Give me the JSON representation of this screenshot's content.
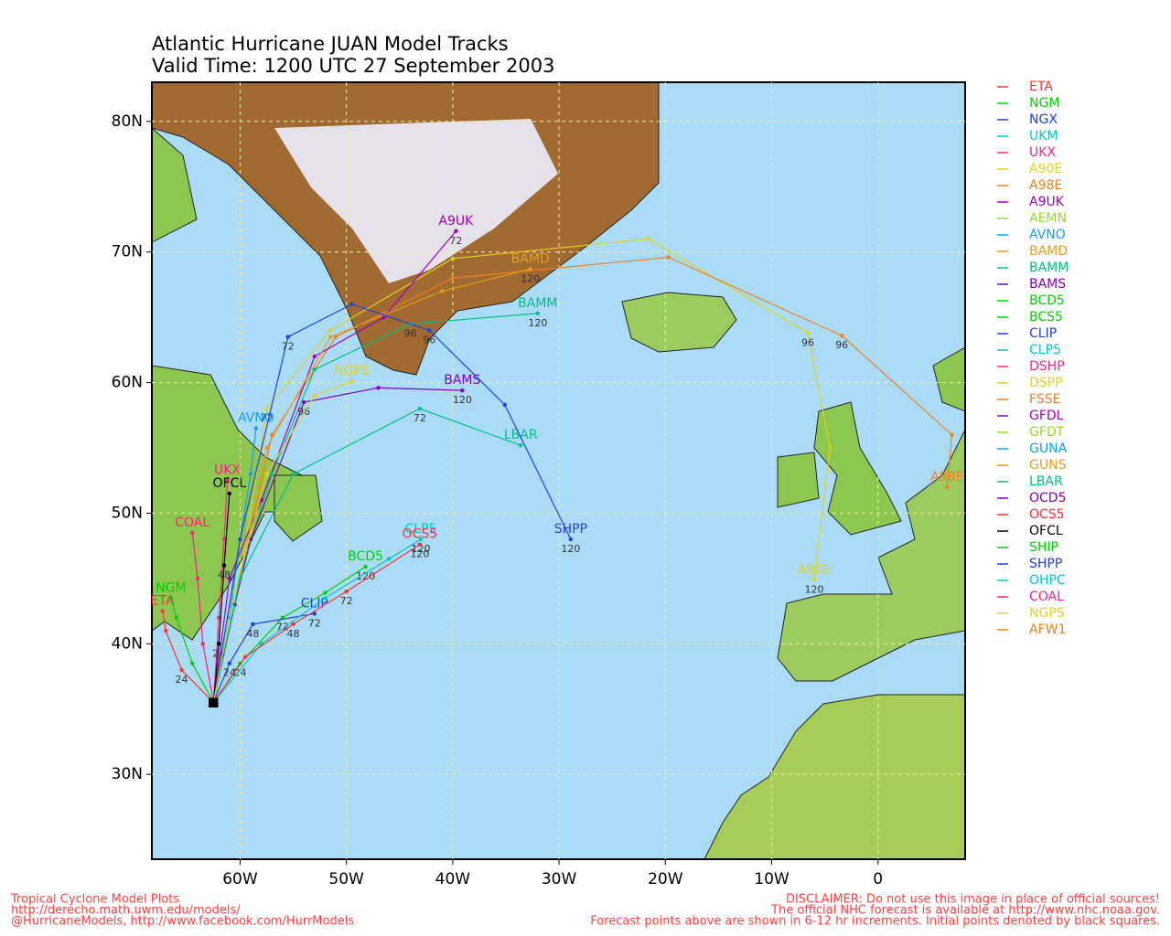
{
  "chart_data": {
    "type": "track-map",
    "title": "Atlantic Hurricane JUAN Model Tracks",
    "subtitle": "Valid Time: 1200 UTC 27 September 2003",
    "xlim": [
      -68.3,
      8.2
    ],
    "ylim": [
      23.5,
      83
    ],
    "grid": true,
    "xticks": [
      {
        "value": -60,
        "label": "60W"
      },
      {
        "value": -50,
        "label": "50W"
      },
      {
        "value": -40,
        "label": "40W"
      },
      {
        "value": -30,
        "label": "30W"
      },
      {
        "value": -20,
        "label": "20W"
      },
      {
        "value": -10,
        "label": "10W"
      },
      0
    ],
    "yticks": [
      {
        "value": 30,
        "label": "30N"
      },
      {
        "value": 40,
        "label": "40N"
      },
      {
        "value": 50,
        "label": "50N"
      },
      {
        "value": 60,
        "label": "60N"
      },
      {
        "value": 70,
        "label": "70N"
      },
      {
        "value": 80,
        "label": "80N"
      }
    ],
    "series": [
      {
        "name": "ETA",
        "color": "#ff3030",
        "lon": [
          -62.5,
          -65.5,
          -67,
          -67.3
        ],
        "lat": [
          35.5,
          38,
          41,
          42.5
        ],
        "hours": [
          null,
          24,
          null,
          null
        ]
      },
      {
        "name": "NGM",
        "color": "#00d000",
        "lon": [
          -62.5,
          -64.5,
          -66,
          -66.5
        ],
        "lat": [
          35.5,
          38.5,
          42,
          43.5
        ]
      },
      {
        "name": "NGX",
        "color": "#2040e0"
      },
      {
        "name": "UKM",
        "color": "#00c8c8"
      },
      {
        "name": "UKX",
        "color": "#ff2080",
        "lon": [
          -62.5,
          -62,
          -61.5,
          -61.2
        ],
        "lat": [
          35.5,
          42,
          48,
          52.5
        ]
      },
      {
        "name": "A90E",
        "color": "#e0d020",
        "lon": [
          -62.5,
          -60,
          -57.5,
          -51.5,
          -40,
          -21.6,
          -6.6,
          -4.5,
          -6
        ],
        "lat": [
          35.5,
          45,
          58,
          64,
          69.5,
          71,
          63.8,
          55,
          44.9
        ],
        "hours": [
          null,
          null,
          72,
          null,
          null,
          null,
          96,
          null,
          120
        ]
      },
      {
        "name": "A98E",
        "color": "#f08020",
        "lon": [
          -62.5,
          -60,
          -57,
          -51,
          -40,
          -19.7,
          -3.4,
          6.95,
          6.5
        ],
        "lat": [
          35.5,
          45,
          56,
          63.5,
          68,
          69.6,
          63.6,
          56,
          52
        ],
        "hours": [
          null,
          null,
          null,
          null,
          null,
          null,
          96,
          null,
          null
        ]
      },
      {
        "name": "A9UK",
        "color": "#a000c0",
        "lon": [
          -62.5,
          -61,
          -58,
          -53,
          -46.5,
          -39.7
        ],
        "lat": [
          35.5,
          45,
          51,
          62,
          65,
          71.6
        ],
        "hours": [
          null,
          null,
          null,
          null,
          null,
          72
        ]
      },
      {
        "name": "AEMN",
        "color": "#90e020"
      },
      {
        "name": "AVNO",
        "color": "#10a0f0",
        "lon": [
          -62.5,
          -61,
          -60,
          -59,
          -58.5
        ],
        "lat": [
          35.5,
          42,
          48,
          53,
          56.5
        ]
      },
      {
        "name": "BAMD",
        "color": "#e0a020",
        "lon": [
          -62.5,
          -60,
          -57.5,
          -51.5,
          -41,
          -32.7
        ],
        "lat": [
          35.5,
          45,
          55,
          63.5,
          67,
          68.7
        ],
        "hours": [
          null,
          null,
          null,
          null,
          null,
          120
        ]
      },
      {
        "name": "BAMM",
        "color": "#00c080",
        "lon": [
          -62.5,
          -60.5,
          -57,
          -53,
          -44,
          -32
        ],
        "lat": [
          35.5,
          44,
          53,
          61,
          64.5,
          65.3
        ],
        "hours": [
          null,
          null,
          null,
          null,
          96,
          120
        ]
      },
      {
        "name": "BAMS",
        "color": "#8000c0",
        "lon": [
          -62.5,
          -60.5,
          -59,
          -54,
          -47,
          -39.1
        ],
        "lat": [
          35.5,
          43,
          48,
          58.5,
          59.6,
          59.4
        ],
        "hours": [
          null,
          null,
          null,
          96,
          null,
          120
        ]
      },
      {
        "name": "BCD5",
        "color": "#00d000",
        "lon": [
          -62.5,
          -60,
          -56,
          -52,
          -48.2
        ],
        "lat": [
          35.5,
          38.5,
          42,
          43.9,
          45.9
        ],
        "hours": [
          null,
          24,
          72,
          null,
          120
        ]
      },
      {
        "name": "BCS5",
        "color": "#00d000"
      },
      {
        "name": "CLIP",
        "color": "#2040e0",
        "lon": [
          -62.5,
          -61,
          -58.8,
          -53
        ],
        "lat": [
          35.5,
          38.5,
          41.5,
          42.3
        ],
        "hours": [
          null,
          24,
          48,
          72
        ]
      },
      {
        "name": "CLP5",
        "color": "#00c8c8",
        "lon": [
          -62.5,
          -58,
          -52,
          -46,
          -43
        ],
        "lat": [
          35.5,
          40,
          43.5,
          46.5,
          48
        ],
        "hours": [
          null,
          null,
          null,
          null,
          120
        ]
      },
      {
        "name": "DSHP",
        "color": "#ff2080"
      },
      {
        "name": "DSPP",
        "color": "#e0d020"
      },
      {
        "name": "FSSE",
        "color": "#f08020"
      },
      {
        "name": "GFDL",
        "color": "#a000c0"
      },
      {
        "name": "GFDT",
        "color": "#90e020"
      },
      {
        "name": "GUNA",
        "color": "#10a0f0"
      },
      {
        "name": "GUNS",
        "color": "#e0a020"
      },
      {
        "name": "LBAR",
        "color": "#00c080",
        "lon": [
          -62.5,
          -60,
          -55,
          -43.1,
          -33.6
        ],
        "lat": [
          35.5,
          45,
          53,
          58,
          55.2
        ],
        "hours": [
          null,
          null,
          null,
          72,
          null
        ]
      },
      {
        "name": "OCD5",
        "color": "#8000c0"
      },
      {
        "name": "OCS5",
        "color": "#ff3030",
        "lon": [
          -62.5,
          -59.5,
          -55,
          -50,
          -43.1
        ],
        "lat": [
          35.5,
          39,
          41.5,
          44,
          47.6
        ],
        "hours": [
          null,
          null,
          48,
          72,
          120
        ]
      },
      {
        "name": "OFCL",
        "color": "#000000",
        "lon": [
          -62.5,
          -62,
          -61.5,
          -61
        ],
        "lat": [
          35.5,
          40,
          46,
          51.5
        ],
        "hours": [
          null,
          24,
          48,
          null
        ]
      },
      {
        "name": "SHIP",
        "color": "#00d000"
      },
      {
        "name": "SHPP",
        "color": "#2040e0",
        "lon": [
          -62.5,
          -60,
          -55.5,
          -49.5,
          -42.2,
          -35.1,
          -28.9
        ],
        "lat": [
          35.5,
          48,
          63.5,
          66,
          64,
          58.3,
          48
        ],
        "hours": [
          null,
          null,
          72,
          null,
          96,
          null,
          120
        ]
      },
      {
        "name": "OHPC",
        "color": "#00c8c8"
      },
      {
        "name": "COAL",
        "color": "#ff2080",
        "lon": [
          -62.5,
          -63.5,
          -64,
          -64.5
        ],
        "lat": [
          35.5,
          40,
          45,
          48.5
        ]
      },
      {
        "name": "NGPS",
        "color": "#e0d020",
        "lon": [
          -62.5,
          -60.5,
          -57.5,
          -53,
          -49.5
        ],
        "lat": [
          35.5,
          44,
          53,
          59,
          60.1
        ]
      },
      {
        "name": "AFW1",
        "color": "#f08020"
      }
    ]
  },
  "footer": {
    "left": [
      "Tropical Cyclone Model Plots",
      "http://derecho.math.uwm.edu/models/",
      "@HurricaneModels, http://www.facebook.com/HurrModels"
    ],
    "right": [
      "DISCLAIMER: Do not use this image in place of official sources!",
      "The official NHC forecast is available at http://www.nhc.noaa.gov.",
      "Forecast points above are shown in 6-12 hr increments. Initial points denoted by black squares."
    ]
  }
}
